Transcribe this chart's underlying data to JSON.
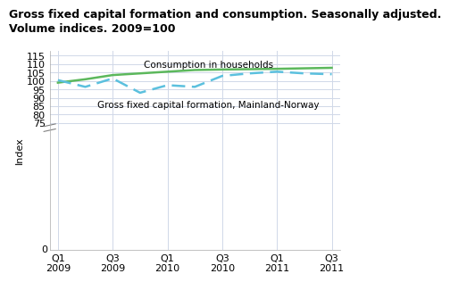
{
  "title": "Gross fixed capital formation and consumption. Seasonally adjusted.\nVolume indices. 2009=100",
  "ylabel": "Index",
  "ylim": [
    0,
    118
  ],
  "yticks": [
    0,
    75,
    80,
    85,
    90,
    95,
    100,
    105,
    110,
    115
  ],
  "x_tick_positions": [
    0,
    2,
    4,
    6,
    8,
    10
  ],
  "x_tick_labels": [
    "Q1\n2009",
    "Q3\n2009",
    "Q1\n2010",
    "Q3\n2010",
    "Q1\n2011",
    "Q3\n2011"
  ],
  "consumption": [
    99.0,
    101.0,
    103.5,
    104.5,
    105.5,
    106.5,
    106.8,
    107.0,
    107.2,
    107.5,
    107.8
  ],
  "gross_capital": [
    100.5,
    96.5,
    101.5,
    93.0,
    97.5,
    96.5,
    103.0,
    104.5,
    105.5,
    104.5,
    104.0
  ],
  "consumption_color": "#5cb85c",
  "capital_color": "#5bc0de",
  "background_color": "#ffffff",
  "grid_color": "#d0d8e8",
  "title_fontsize": 9,
  "label_fontsize": 8,
  "annotation_consumption": "Consumption in households",
  "annotation_capital": "Gross fixed capital formation, Mainland-Norway",
  "n_points": 11
}
